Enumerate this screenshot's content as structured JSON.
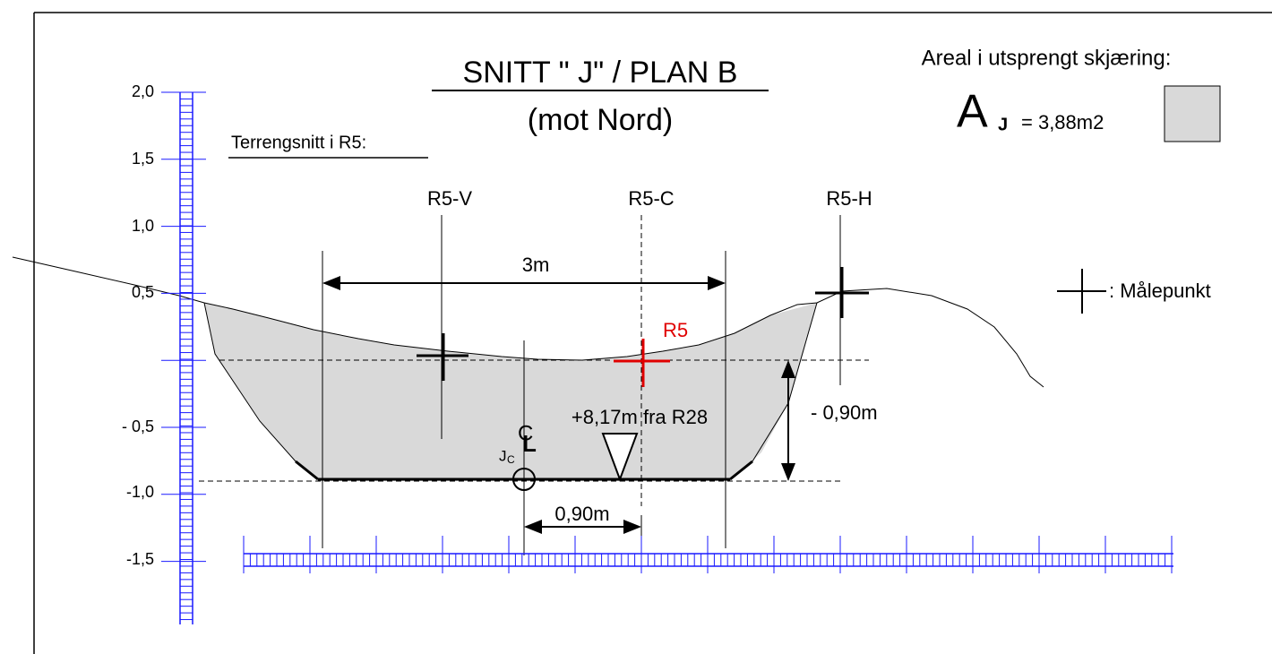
{
  "header": {
    "title": "SNITT \" J\" / PLAN B",
    "subtitle": "(mot Nord)"
  },
  "area": {
    "label": "Areal i utsprengt skjæring:",
    "symbol": "A",
    "subscript": "J",
    "value": "= 3,88m2"
  },
  "terrain_label": "Terrengsnitt i R5:",
  "vertical_scale": {
    "labels": [
      "2,0",
      "1,5",
      "1,0",
      "0,5",
      "- 0,5",
      "-1,0",
      "-1,5"
    ]
  },
  "points": {
    "left": "R5-V",
    "center": "R5-C",
    "right": "R5-H",
    "measured": "R5"
  },
  "dimensions": {
    "width": "3m",
    "depth": "- 0,90m",
    "offset": "0,90m",
    "station": "+8,17m fra R28"
  },
  "centerline": {
    "c": "C",
    "l": "L",
    "junction": "J",
    "junction_sub": "C"
  },
  "legend": {
    "marker": ": Målepunkt"
  }
}
